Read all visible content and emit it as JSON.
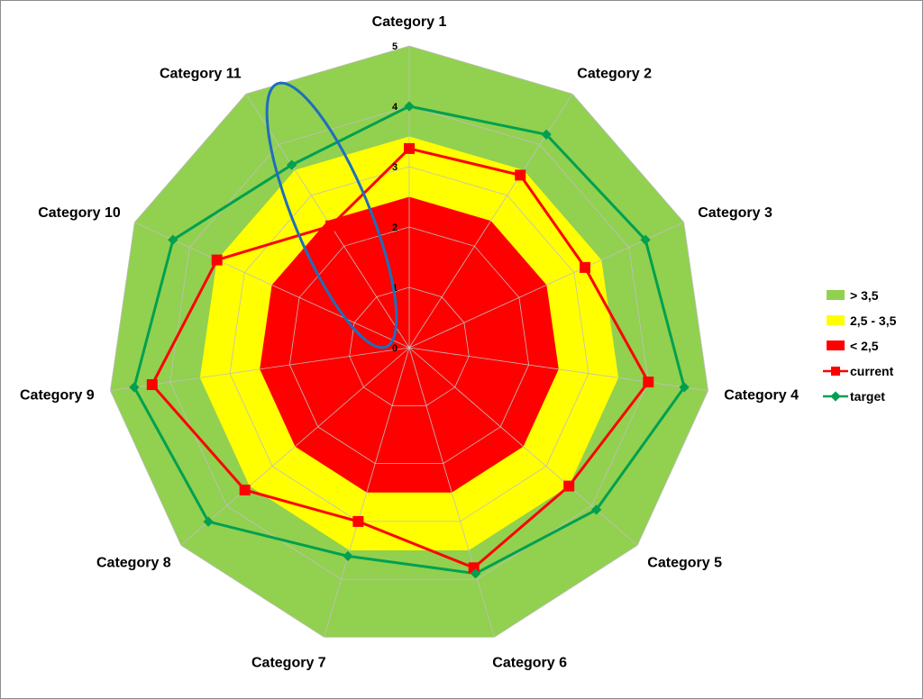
{
  "chart_data": {
    "type": "radar",
    "categories": [
      "Category 1",
      "Category 2",
      "Category 3",
      "Category 4",
      "Category 5",
      "Category 6",
      "Category 7",
      "Category 8",
      "Category 9",
      "Category 10",
      "Category 11"
    ],
    "rlim": [
      0,
      5
    ],
    "ticks": [
      "0",
      "1",
      "2",
      "3",
      "4",
      "5"
    ],
    "bands": [
      {
        "name": "> 3,5",
        "value": 5,
        "color": "#92d050"
      },
      {
        "name": "2,5 - 3,5",
        "value": 3.5,
        "color": "#ffff00"
      },
      {
        "name": "< 2,5",
        "value": 2.5,
        "color": "#ff0000"
      }
    ],
    "series": [
      {
        "name": "current",
        "color": "#ff0000",
        "marker": "square",
        "values": [
          3.3,
          3.4,
          3.2,
          4.0,
          3.5,
          3.8,
          3.0,
          3.6,
          4.3,
          3.5,
          2.4
        ]
      },
      {
        "name": "target",
        "color": "#00a050",
        "marker": "diamond",
        "values": [
          4.0,
          4.2,
          4.3,
          4.6,
          4.1,
          3.9,
          3.6,
          4.4,
          4.6,
          4.3,
          3.6
        ]
      }
    ],
    "legend": "right",
    "grid": true
  }
}
